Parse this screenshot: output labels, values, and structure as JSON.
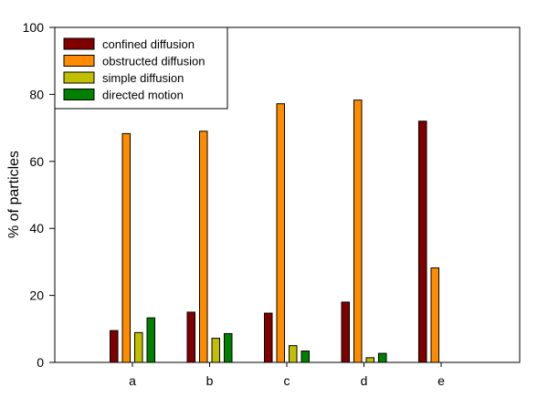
{
  "chart_data": {
    "type": "bar",
    "title": "",
    "xlabel": "",
    "ylabel": "% of particles",
    "ylim": [
      0,
      100
    ],
    "yticks": [
      0,
      20,
      40,
      60,
      80,
      100
    ],
    "grid": false,
    "legend_position": "top-left",
    "categories": [
      "a",
      "b",
      "c",
      "d",
      "e"
    ],
    "series": [
      {
        "name": "confined diffusion",
        "color": "#800000",
        "values": [
          9.5,
          15.0,
          14.7,
          18.0,
          72.0
        ]
      },
      {
        "name": "obstructed diffusion",
        "color": "#ff8c00",
        "values": [
          68.3,
          69.0,
          77.2,
          78.3,
          28.2
        ]
      },
      {
        "name": "simple diffusion",
        "color": "#c0c000",
        "values": [
          8.9,
          7.2,
          5.0,
          1.4,
          0
        ]
      },
      {
        "name": "directed motion",
        "color": "#008000",
        "values": [
          13.3,
          8.6,
          3.4,
          2.7,
          0
        ]
      }
    ]
  }
}
